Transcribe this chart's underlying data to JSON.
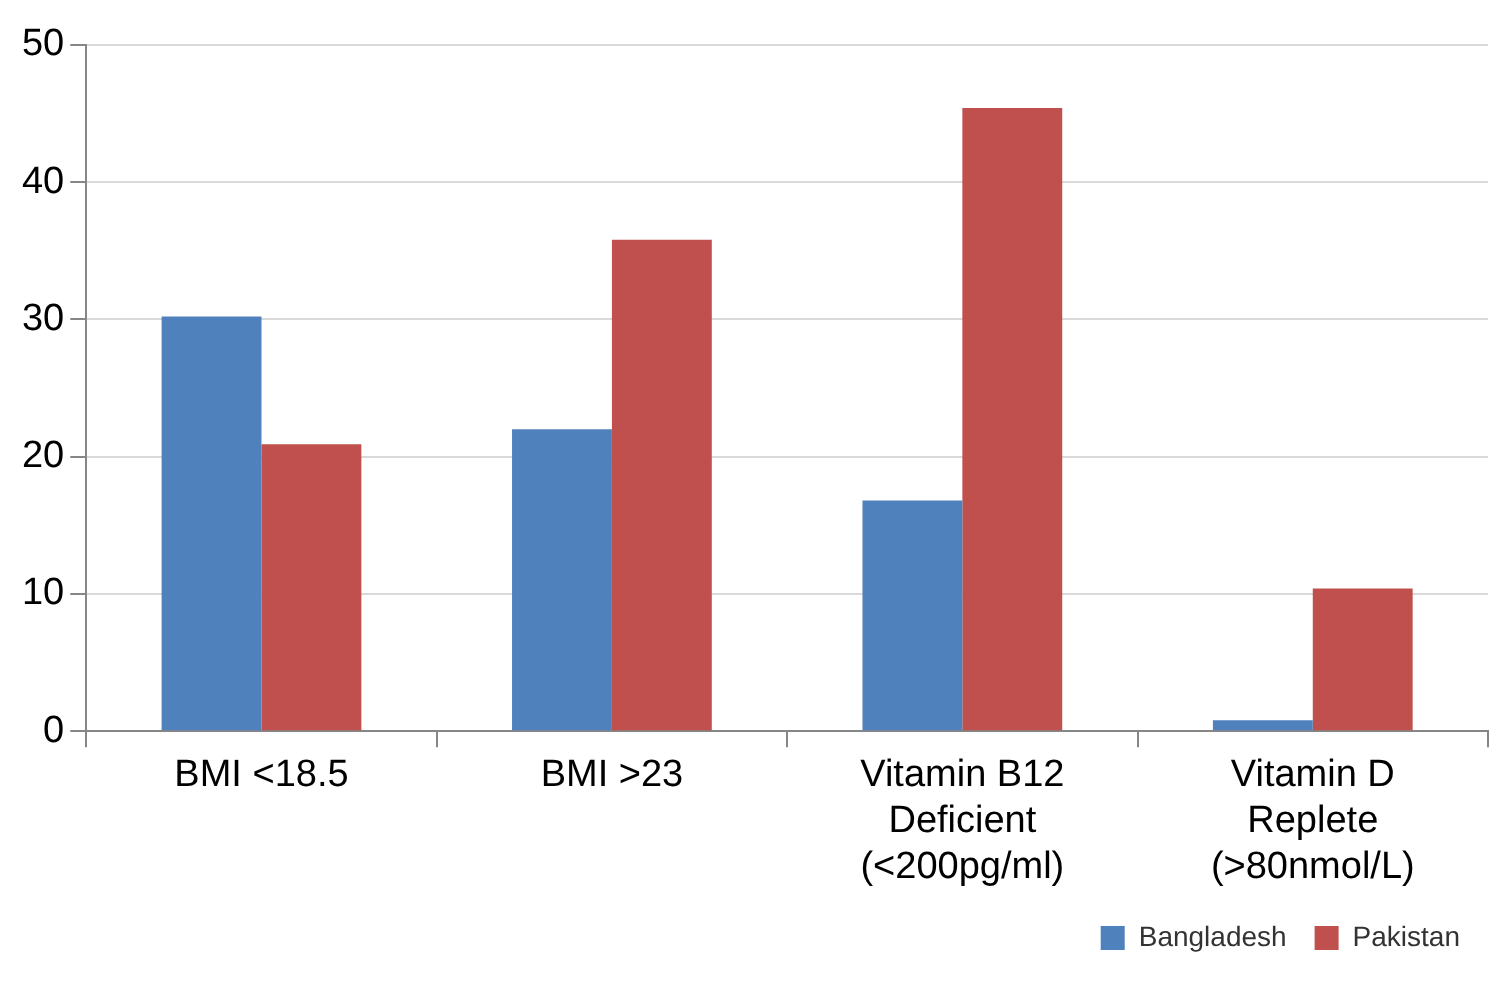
{
  "chart_data": {
    "type": "bar",
    "categories": [
      "BMI <18.5",
      "BMI >23",
      "Vitamin B12 Deficient (<200pg/ml)",
      "Vitamin D Replete (>80nmol/L)"
    ],
    "series": [
      {
        "name": "Bangladesh",
        "color": "#4f81bd",
        "values": [
          30.2,
          22.0,
          16.8,
          0.8
        ]
      },
      {
        "name": "Pakistan",
        "color": "#c0504d",
        "values": [
          20.9,
          35.8,
          45.4,
          10.4
        ]
      }
    ],
    "ylim": [
      0,
      50
    ],
    "yticks": [
      0,
      10,
      20,
      30,
      40,
      50
    ],
    "grid": "y",
    "legend": "bottom right"
  }
}
